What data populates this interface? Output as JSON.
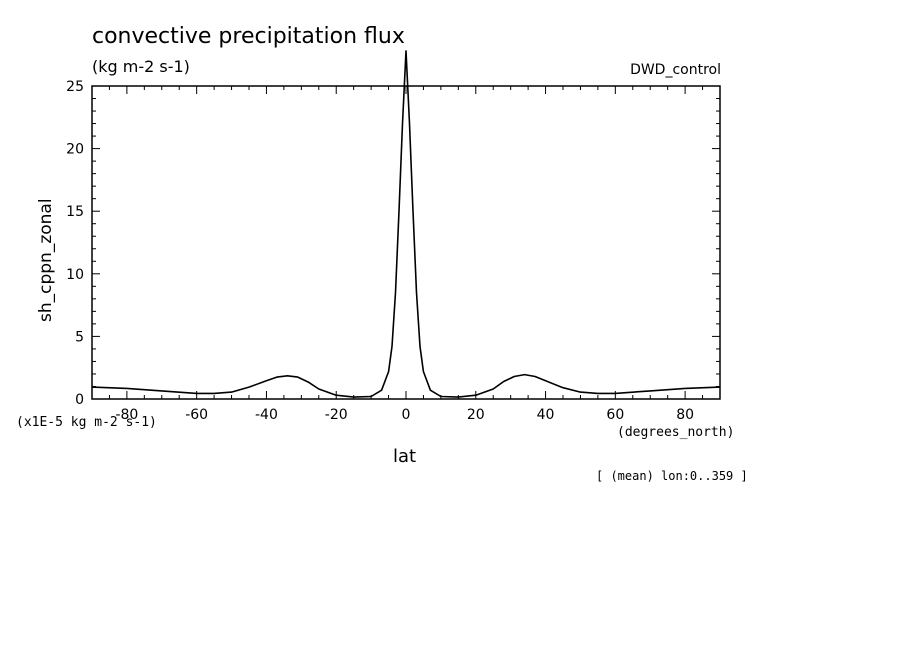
{
  "chart_data": {
    "type": "line",
    "title": "convective precipitation flux",
    "subtitle": "(kg m-2 s-1)",
    "dataset_label": "DWD_control",
    "xlabel": "lat",
    "x_units": "(degrees_north)",
    "ylabel": "sh_cppn_zonal",
    "y_scale_note": "(x1E-5 kg m-2 s-1)",
    "region_note": "[ (mean) lon:0..359 ]",
    "xlim": [
      -90,
      90
    ],
    "ylim": [
      0,
      25
    ],
    "x_ticks": [
      -80,
      -60,
      -40,
      -20,
      0,
      20,
      40,
      60,
      80
    ],
    "y_ticks": [
      0,
      5,
      10,
      15,
      20,
      25
    ],
    "grid": false,
    "series": [
      {
        "color": "#000000",
        "x": [
          -90,
          -80,
          -70,
          -60,
          -55,
          -50,
          -45,
          -40,
          -37,
          -34,
          -31,
          -28,
          -25,
          -20,
          -15,
          -10,
          -7,
          -5,
          -4,
          -3,
          -2,
          -1,
          0,
          1,
          2,
          3,
          4,
          5,
          7,
          10,
          15,
          20,
          25,
          28,
          31,
          34,
          37,
          40,
          45,
          50,
          55,
          60,
          70,
          80,
          90
        ],
        "y": [
          0.95,
          0.85,
          0.65,
          0.45,
          0.45,
          0.55,
          0.95,
          1.45,
          1.75,
          1.85,
          1.75,
          1.35,
          0.8,
          0.3,
          0.15,
          0.2,
          0.7,
          2.2,
          4.2,
          8.5,
          15.0,
          22.0,
          27.8,
          22.0,
          15.0,
          8.5,
          4.2,
          2.2,
          0.7,
          0.2,
          0.15,
          0.3,
          0.8,
          1.4,
          1.8,
          1.95,
          1.8,
          1.45,
          0.9,
          0.55,
          0.45,
          0.45,
          0.65,
          0.85,
          0.95
        ]
      }
    ]
  }
}
